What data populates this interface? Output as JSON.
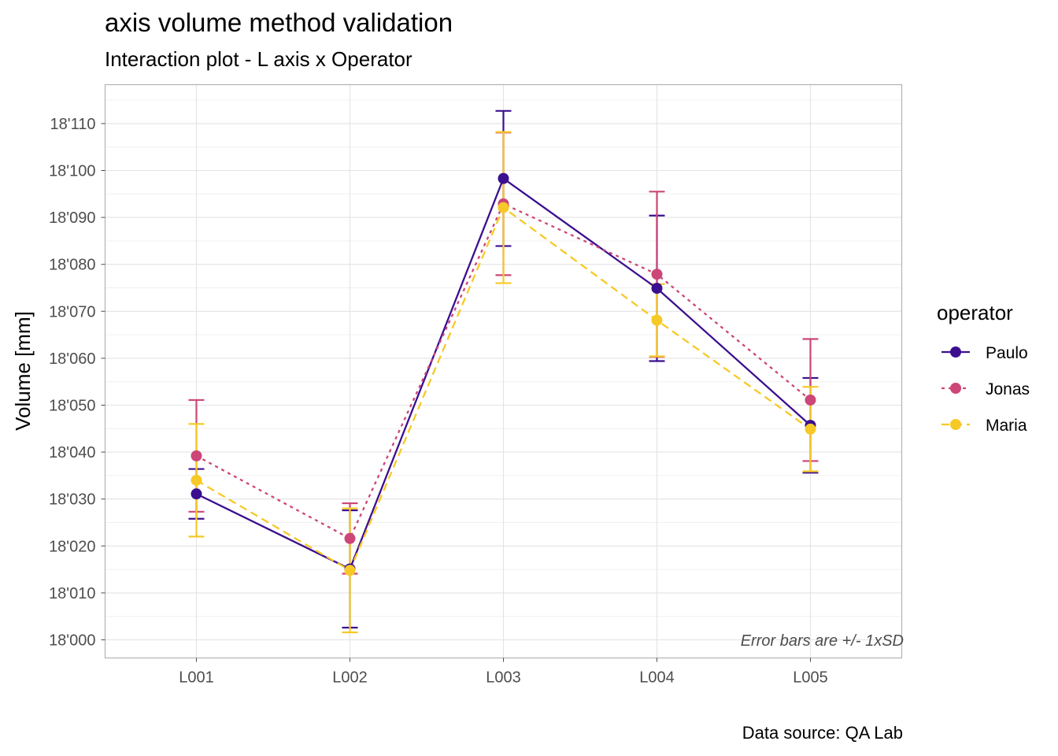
{
  "chart_data": {
    "type": "line",
    "title": "axis volume method validation",
    "subtitle": "Interaction plot - L axis x Operator",
    "caption": "Data source: QA Lab",
    "annotation": "Error bars are +/- 1xSD",
    "xlabel": "",
    "ylabel": "Volume [mm]",
    "categories": [
      "L001",
      "L002",
      "L003",
      "L004",
      "L005"
    ],
    "ylim": [
      17996,
      18118
    ],
    "y_ticks": [
      18000,
      18010,
      18020,
      18030,
      18040,
      18050,
      18060,
      18070,
      18080,
      18090,
      18100,
      18110
    ],
    "y_tick_labels": [
      "18'000",
      "18'010",
      "18'020",
      "18'030",
      "18'040",
      "18'050",
      "18'060",
      "18'070",
      "18'080",
      "18'090",
      "18'100",
      "18'110"
    ],
    "grid": true,
    "legend": {
      "title": "operator",
      "position": "right"
    },
    "series": [
      {
        "name": "Paulo",
        "color": "#3b0f8f",
        "dash": "solid",
        "values": [
          18031.1,
          18015.1,
          18098.3,
          18074.9,
          18045.7
        ],
        "sd": [
          5.3,
          12.5,
          14.4,
          15.5,
          10.1
        ]
      },
      {
        "name": "Jonas",
        "color": "#cc4678",
        "dash": "dotted",
        "values": [
          18039.2,
          18021.6,
          18092.9,
          18077.9,
          18051.1
        ],
        "sd": [
          11.9,
          7.5,
          15.2,
          17.6,
          13.0
        ]
      },
      {
        "name": "Maria",
        "color": "#f7c926",
        "dash": "dashed",
        "values": [
          18034.0,
          18014.8,
          18092.1,
          18068.1,
          18044.9
        ],
        "sd": [
          12.0,
          13.2,
          16.1,
          7.7,
          9.0
        ]
      }
    ]
  }
}
